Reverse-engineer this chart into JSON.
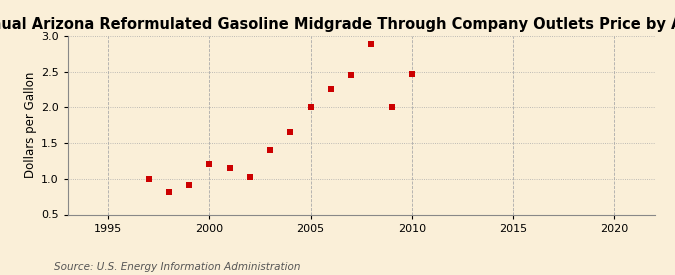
{
  "title": "Annual Arizona Reformulated Gasoline Midgrade Through Company Outlets Price by All Sellers",
  "ylabel": "Dollars per Gallon",
  "source": "Source: U.S. Energy Information Administration",
  "background_color": "#faefd8",
  "x_data": [
    1997,
    1998,
    1999,
    2000,
    2001,
    2002,
    2003,
    2004,
    2005,
    2006,
    2007,
    2008,
    2009,
    2010
  ],
  "y_data": [
    1.0,
    0.82,
    0.91,
    1.2,
    1.15,
    1.03,
    1.4,
    1.65,
    2.01,
    2.25,
    2.45,
    2.89,
    2.01,
    2.46
  ],
  "marker_color": "#cc0000",
  "marker": "s",
  "marker_size": 4,
  "xlim": [
    1993,
    2022
  ],
  "ylim": [
    0.5,
    3.0
  ],
  "xticks": [
    1995,
    2000,
    2005,
    2010,
    2015,
    2020
  ],
  "yticks": [
    0.5,
    1.0,
    1.5,
    2.0,
    2.5,
    3.0
  ],
  "hgrid_color": "#aaaaaa",
  "vgrid_color": "#aaaaaa",
  "hgrid_linestyle": ":",
  "vgrid_linestyle": "--",
  "title_fontsize": 10.5,
  "label_fontsize": 8.5,
  "tick_fontsize": 8,
  "source_fontsize": 7.5
}
